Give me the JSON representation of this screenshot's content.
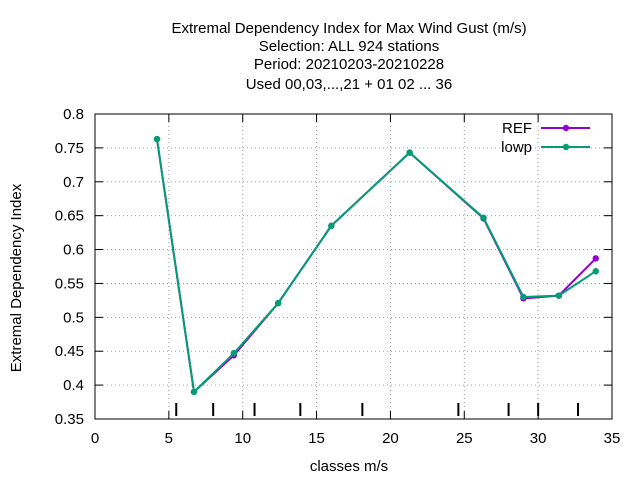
{
  "chart_data": {
    "type": "line",
    "title_lines": [
      "Extremal Dependency Index  for Max Wind Gust (m/s)",
      "Selection: ALL    924 stations",
      "Period: 20210203-20210228",
      "Used  00,03,...,21  + 01 02 ... 36"
    ],
    "xlabel": "classes m/s",
    "ylabel": "Extremal Dependency Index",
    "xlim": [
      0,
      35
    ],
    "ylim": [
      0.35,
      0.8
    ],
    "xticks": [
      0,
      5,
      10,
      15,
      20,
      25,
      30,
      35
    ],
    "xtick_labels": [
      "0",
      "5",
      "10",
      "15",
      "20",
      "25",
      "30",
      "35"
    ],
    "yticks": [
      0.35,
      0.4,
      0.45,
      0.5,
      0.55,
      0.6,
      0.65,
      0.7,
      0.75,
      0.8
    ],
    "ytick_labels": [
      "0.35",
      "0.4",
      "0.45",
      "0.5",
      "0.55",
      "0.6",
      "0.65",
      "0.7",
      "0.75",
      "0.8"
    ],
    "grid": true,
    "legend_position": "top-right",
    "class_markers_x": [
      5.5,
      8.0,
      10.8,
      13.9,
      18.1,
      24.6,
      28.0,
      30.0,
      32.7
    ],
    "series": [
      {
        "name": "REF",
        "color": "#9400d3",
        "x": [
          4.2,
          6.7,
          9.4,
          12.4,
          16.0,
          21.3,
          26.3,
          29.0,
          31.4,
          33.9
        ],
        "y": [
          0.763,
          0.39,
          0.444,
          0.521,
          0.635,
          0.743,
          0.646,
          0.528,
          0.532,
          0.587
        ]
      },
      {
        "name": "lowp",
        "color": "#009e73",
        "x": [
          4.2,
          6.7,
          9.4,
          12.4,
          16.0,
          21.3,
          26.3,
          29.0,
          31.4,
          33.9
        ],
        "y": [
          0.763,
          0.39,
          0.447,
          0.521,
          0.635,
          0.743,
          0.647,
          0.53,
          0.532,
          0.568
        ]
      }
    ]
  }
}
